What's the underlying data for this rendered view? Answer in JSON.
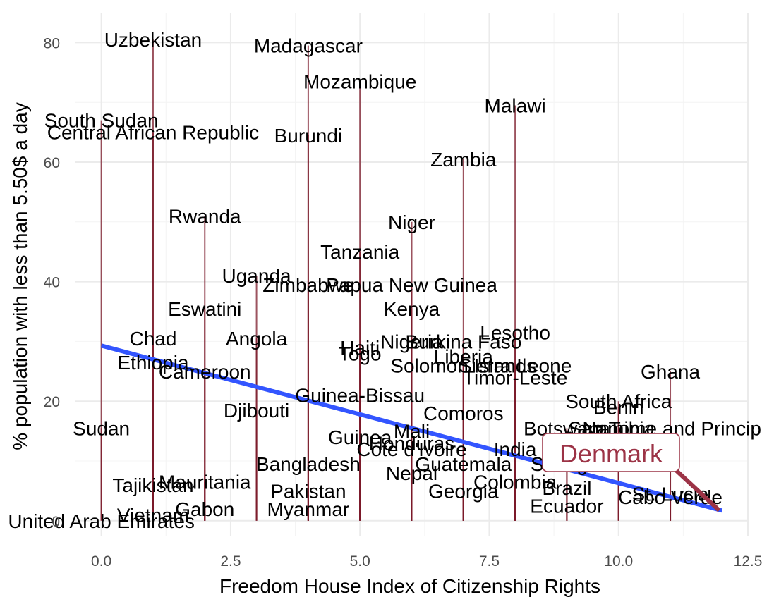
{
  "chart_data": {
    "type": "scatter",
    "title": "",
    "xlabel": "Freedom House Index of Citizenship Rights",
    "ylabel": "% population with less than 5.50$ a day",
    "xlim": [
      -0.5,
      12.5
    ],
    "ylim": [
      -2.5,
      85
    ],
    "x_ticks": [
      0,
      2.5,
      5,
      7.5,
      10,
      12.5
    ],
    "x_tick_labels": [
      "0.0",
      "2.5",
      "5.0",
      "7.5",
      "10.0",
      "12.5"
    ],
    "y_ticks": [
      0,
      20,
      40,
      60,
      80
    ],
    "y_tick_labels": [
      "0",
      "20",
      "40",
      "60",
      "80"
    ],
    "grid": true,
    "mark_style": "vertical segment from 0 to value",
    "colors": {
      "spike": "#7b1a2a",
      "fit": "#3355ff",
      "highlight": "#9c3346",
      "grid": "#ebebeb"
    },
    "fit_line": {
      "x": [
        0,
        12
      ],
      "y": [
        29.3,
        1.7
      ]
    },
    "points": [
      {
        "label": "Uzbekistan",
        "x": 1,
        "y": 80.5
      },
      {
        "label": "Madagascar",
        "x": 4,
        "y": 79.5
      },
      {
        "label": "Mozambique",
        "x": 5,
        "y": 73.5
      },
      {
        "label": "South Sudan",
        "x": 0,
        "y": 67
      },
      {
        "label": "Central African Republic",
        "x": 1,
        "y": 65
      },
      {
        "label": "Burundi",
        "x": 4,
        "y": 64.5
      },
      {
        "label": "Malawi",
        "x": 8,
        "y": 69.5
      },
      {
        "label": "Zambia",
        "x": 7,
        "y": 60.5
      },
      {
        "label": "Rwanda",
        "x": 2,
        "y": 51
      },
      {
        "label": "Niger",
        "x": 6,
        "y": 50
      },
      {
        "label": "Tanzania",
        "x": 5,
        "y": 45
      },
      {
        "label": "Uganda",
        "x": 3,
        "y": 41
      },
      {
        "label": "Zimbabwe",
        "x": 4,
        "y": 39.5
      },
      {
        "label": "Papua New Guinea",
        "x": 6,
        "y": 39.5
      },
      {
        "label": "Eswatini",
        "x": 2,
        "y": 35.5
      },
      {
        "label": "Kenya",
        "x": 6,
        "y": 35.5
      },
      {
        "label": "Lesotho",
        "x": 8,
        "y": 31.5
      },
      {
        "label": "Chad",
        "x": 1,
        "y": 30.5
      },
      {
        "label": "Angola",
        "x": 3,
        "y": 30.5
      },
      {
        "label": "Nigeria",
        "x": 6,
        "y": 30
      },
      {
        "label": "Burkina Faso",
        "x": 7,
        "y": 30
      },
      {
        "label": "Haiti",
        "x": 5,
        "y": 29
      },
      {
        "label": "Togo",
        "x": 5,
        "y": 28
      },
      {
        "label": "Liberia",
        "x": 7,
        "y": 27.5
      },
      {
        "label": "Ethiopia",
        "x": 1,
        "y": 26.5
      },
      {
        "label": "Solomon Islands",
        "x": 7,
        "y": 26
      },
      {
        "label": "Sierra Leone",
        "x": 8,
        "y": 26
      },
      {
        "label": "Cameroon",
        "x": 2,
        "y": 25
      },
      {
        "label": "Timor-Leste",
        "x": 8,
        "y": 24
      },
      {
        "label": "Ghana",
        "x": 11,
        "y": 25
      },
      {
        "label": "Guinea-Bissau",
        "x": 5,
        "y": 21
      },
      {
        "label": "South Africa",
        "x": 10,
        "y": 20
      },
      {
        "label": "Benin",
        "x": 10,
        "y": 19
      },
      {
        "label": "Djibouti",
        "x": 3,
        "y": 18.5
      },
      {
        "label": "Comoros",
        "x": 7,
        "y": 18
      },
      {
        "label": "Sudan",
        "x": 0,
        "y": 15.5
      },
      {
        "label": "Sao Tome and Principe",
        "x": 11,
        "y": 15.5
      },
      {
        "label": "Botswana",
        "x": 9,
        "y": 15.5
      },
      {
        "label": "Namibia",
        "x": 10,
        "y": 15.5
      },
      {
        "label": "Mali",
        "x": 6,
        "y": 15
      },
      {
        "label": "Guinea",
        "x": 5,
        "y": 14
      },
      {
        "label": "Honduras",
        "x": 6,
        "y": 13
      },
      {
        "label": "Cote d'Ivoire",
        "x": 6,
        "y": 12
      },
      {
        "label": "India",
        "x": 8,
        "y": 12
      },
      {
        "label": "Senegal",
        "x": 9,
        "y": 9.5
      },
      {
        "label": "Guatemala",
        "x": 7,
        "y": 9.5
      },
      {
        "label": "Bangladesh",
        "x": 4,
        "y": 9.5
      },
      {
        "label": "Nepal",
        "x": 6,
        "y": 8
      },
      {
        "label": "Tajikistan",
        "x": 1,
        "y": 6
      },
      {
        "label": "Mauritania",
        "x": 2,
        "y": 6.5
      },
      {
        "label": "Colombia",
        "x": 8,
        "y": 6.5
      },
      {
        "label": "Pakistan",
        "x": 4,
        "y": 5
      },
      {
        "label": "Georgia",
        "x": 7,
        "y": 5
      },
      {
        "label": "Brazil",
        "x": 9,
        "y": 5.5
      },
      {
        "label": "Gabon",
        "x": 2,
        "y": 2
      },
      {
        "label": "Myanmar",
        "x": 4,
        "y": 2
      },
      {
        "label": "Ecuador",
        "x": 9,
        "y": 2.5
      },
      {
        "label": "Cabo Verde",
        "x": 11,
        "y": 4
      },
      {
        "label": "St. Lucia",
        "x": 11,
        "y": 4.5
      },
      {
        "label": "Vietnam",
        "x": 1,
        "y": 1
      },
      {
        "label": "United Arab Emirates",
        "x": 0,
        "y": 0
      },
      {
        "label": "Denmark",
        "x": 12,
        "y": 1.5,
        "highlight": true
      }
    ]
  }
}
